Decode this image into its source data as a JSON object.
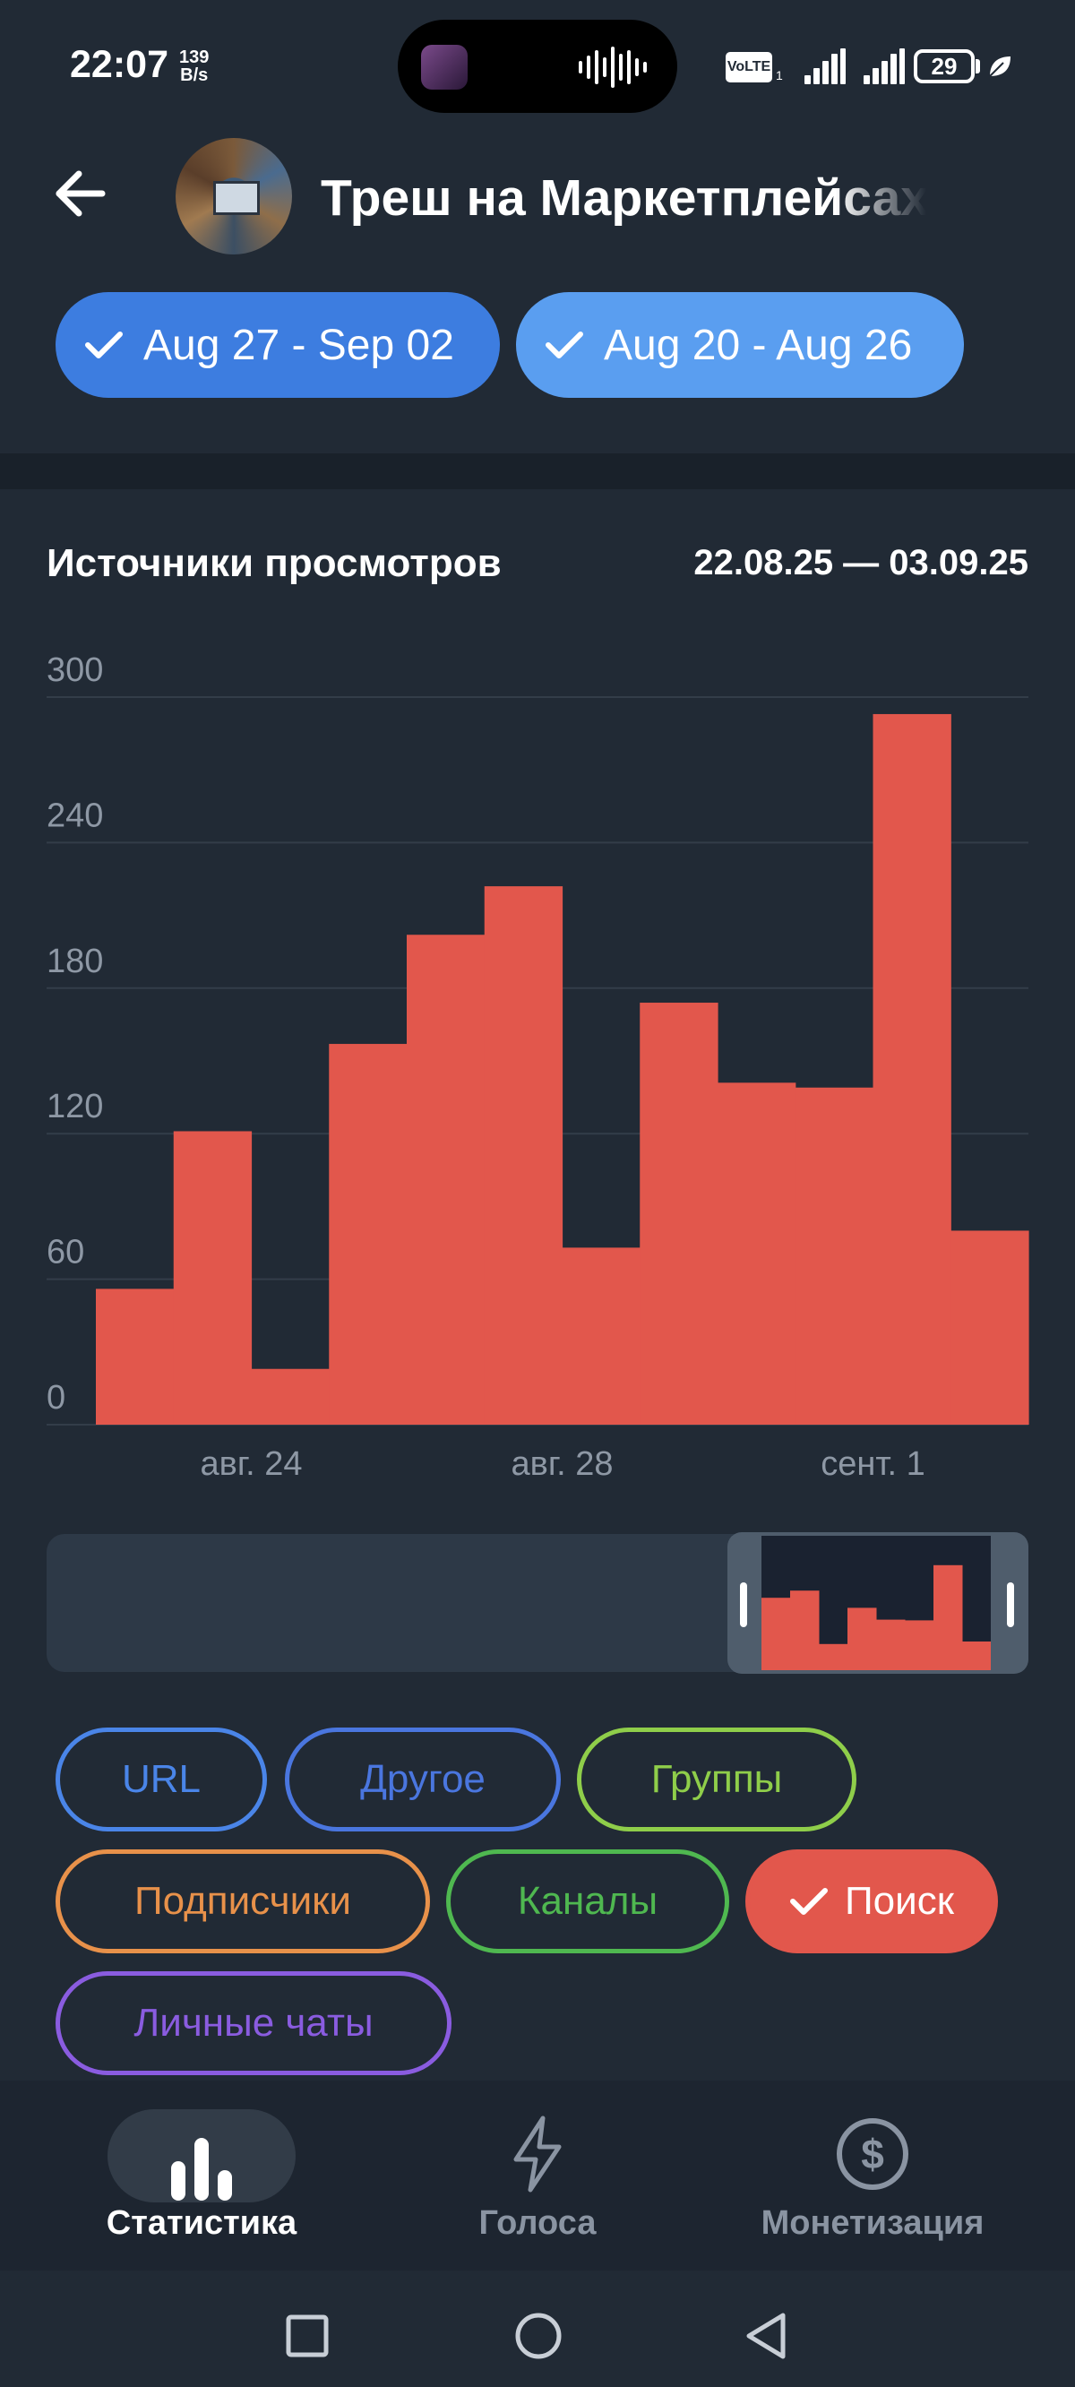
{
  "status_bar": {
    "time": "22:07",
    "net_speed_value": "139",
    "net_speed_unit": "B/s",
    "volte": "VoLTE",
    "volte_sub": "1",
    "battery": "29"
  },
  "header": {
    "channel_title": "Треш на Маркетплейсах",
    "week_chips": [
      "Aug 27 - Sep 02",
      "Aug 20 - Aug 26"
    ]
  },
  "colors": {
    "background": "#212a35",
    "bar": "#e2574c",
    "chip_week1": "#3d7de0",
    "chip_week2": "#5a9ef0"
  },
  "chart_data": {
    "type": "bar",
    "title": "Источники просмотров",
    "date_range": "22.08.25 — 03.09.25",
    "series": [
      {
        "name": "Поиск",
        "color": "#e2574c",
        "values": [
          56,
          121,
          23,
          157,
          202,
          222,
          73,
          174,
          141,
          139,
          293,
          80
        ]
      }
    ],
    "x_tick_labels": [
      "авг. 24",
      "авг. 28",
      "сент. 1"
    ],
    "x_tick_bar_index": [
      1.5,
      5.5,
      9.5
    ],
    "y_ticks": [
      0,
      60,
      120,
      180,
      240,
      300
    ],
    "ylim": [
      0,
      300
    ],
    "grid": true
  },
  "filters": [
    {
      "label": "URL",
      "color": "#4a85e8",
      "selected": false
    },
    {
      "label": "Другое",
      "color": "#4a76df",
      "selected": false
    },
    {
      "label": "Группы",
      "color": "#8fce4a",
      "selected": false
    },
    {
      "label": "Подписчики",
      "color": "#e8914a",
      "selected": false
    },
    {
      "label": "Каналы",
      "color": "#4fb850",
      "selected": false
    },
    {
      "label": "Поиск",
      "color": "#e2574c",
      "selected": true
    },
    {
      "label": "Личные чаты",
      "color": "#8a5ce0",
      "selected": false
    }
  ],
  "bottom_nav": {
    "tabs": [
      {
        "label": "Статистика",
        "icon": "bar-chart-icon",
        "active": true
      },
      {
        "label": "Голоса",
        "icon": "lightning-icon",
        "active": false
      },
      {
        "label": "Монетизация",
        "icon": "dollar-icon",
        "active": false
      }
    ]
  }
}
